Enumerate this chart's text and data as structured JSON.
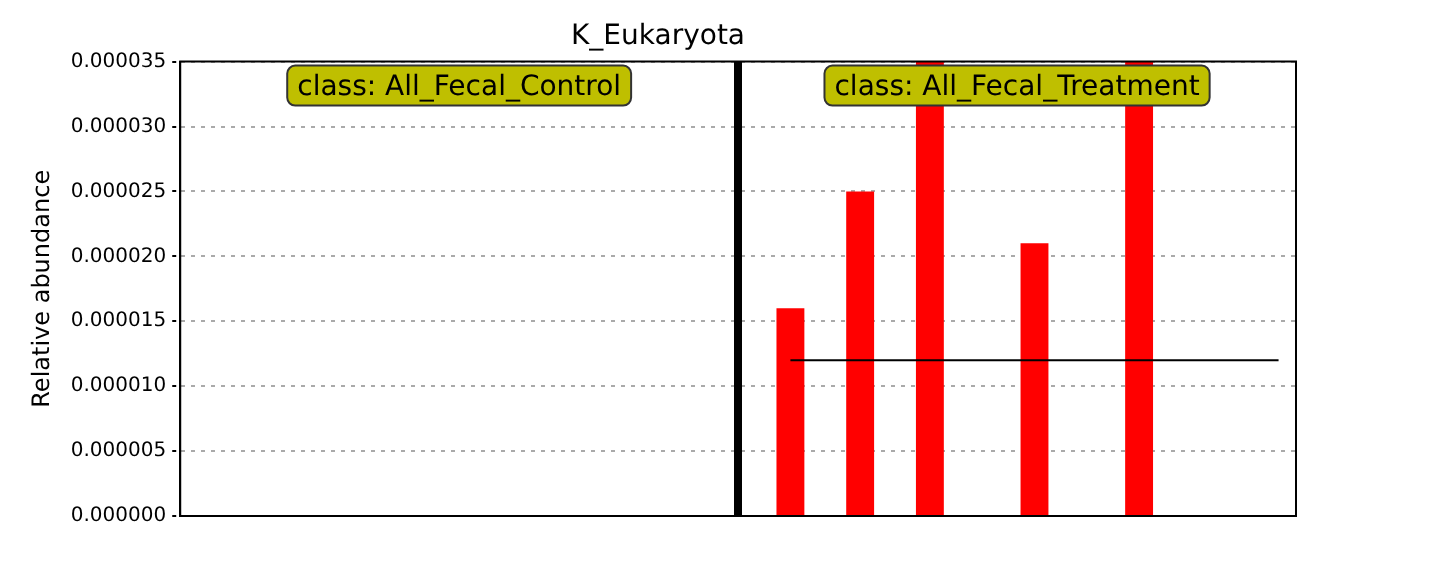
{
  "chart_data": {
    "type": "bar",
    "title": "K_Eukaryota",
    "ylabel": "Relative abundance",
    "categories": [
      null,
      null,
      null,
      null,
      null,
      null,
      null,
      null,
      null,
      null,
      null,
      null,
      null,
      null,
      null,
      null,
      null,
      null,
      null,
      null,
      null,
      null,
      null,
      null,
      null,
      null,
      null,
      null,
      null,
      null,
      null,
      null
    ],
    "series": [
      {
        "color": "#ff0000",
        "values": [
          0,
          0,
          0,
          0,
          0,
          0,
          0,
          0,
          0,
          0,
          0,
          0,
          0,
          0,
          0,
          0,
          0,
          1.6e-05,
          0,
          2.5e-05,
          0,
          3.5e-05,
          0,
          0,
          2.1e-05,
          0,
          0,
          3.5e-05,
          0,
          0,
          0,
          0
        ]
      },
      {
        "type": "line",
        "color": "#000000",
        "values": [
          null,
          null,
          null,
          null,
          null,
          null,
          null,
          null,
          null,
          null,
          null,
          null,
          null,
          null,
          null,
          null,
          null,
          1.2e-05,
          1.2e-05,
          1.2e-05,
          1.2e-05,
          1.2e-05,
          1.2e-05,
          1.2e-05,
          1.2e-05,
          1.2e-05,
          1.2e-05,
          1.2e-05,
          1.2e-05,
          1.2e-05,
          1.2e-05,
          1.2e-05
        ]
      }
    ],
    "ylim": [
      0,
      3.5e-05
    ],
    "yticks": [
      {
        "value": 0,
        "label": "0.000000"
      },
      {
        "value": 5e-06,
        "label": "0.000005"
      },
      {
        "value": 1e-05,
        "label": "0.000010"
      },
      {
        "value": 1.5e-05,
        "label": "0.000015"
      },
      {
        "value": 2e-05,
        "label": "0.000020"
      },
      {
        "value": 2.5e-05,
        "label": "0.000025"
      },
      {
        "value": 3e-05,
        "label": "0.000030"
      },
      {
        "value": 3.5e-05,
        "label": "0.000035"
      }
    ],
    "grid": "y",
    "tick_labels": "y",
    "marker": "none",
    "legend": false,
    "annotations": [
      "class: All_Fecal_Control",
      "class: All_Fecal_Treatment"
    ]
  }
}
